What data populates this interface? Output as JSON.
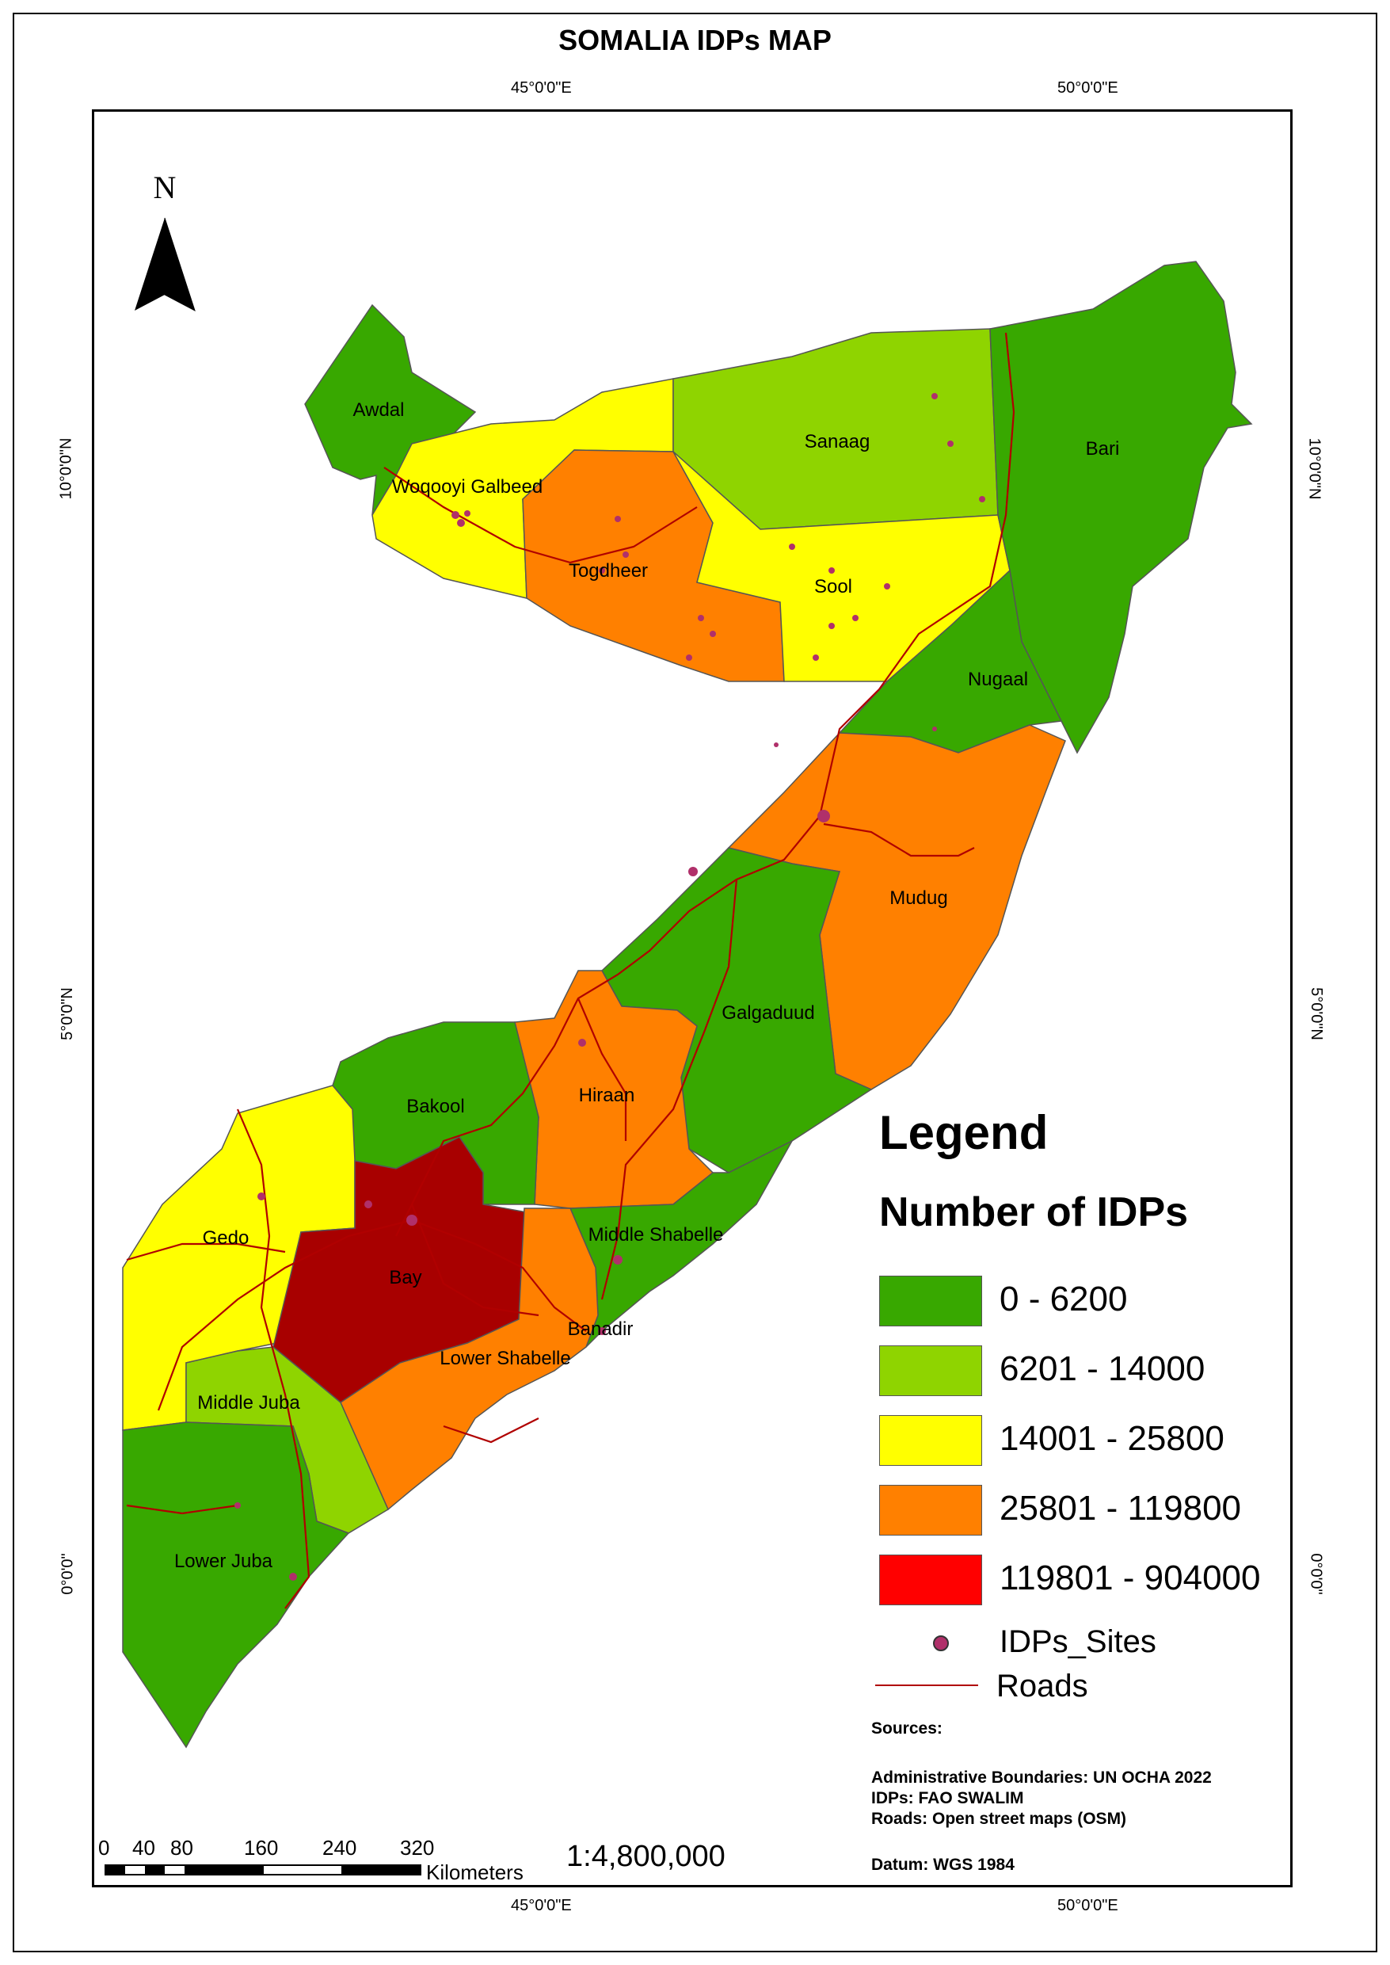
{
  "title": "SOMALIA IDPs MAP",
  "graticule": {
    "lon_top": [
      "45°0'0\"E",
      "50°0'0\"E"
    ],
    "lon_bottom": [
      "45°0'0\"E",
      "50°0'0\"E"
    ],
    "lat_left": [
      "10°0'0\"N",
      "5°0'0\"N",
      "0°0'0\""
    ],
    "lat_right": [
      "10°0'0\"N",
      "5°0'0\"N",
      "0°0'0\""
    ]
  },
  "north_arrow": {
    "label": "N"
  },
  "regions": [
    {
      "name": "Awdal",
      "category": "0 - 6200"
    },
    {
      "name": "Woqooyi Galbeed",
      "category": "14001 - 25800"
    },
    {
      "name": "Togdheer",
      "category": "25801 - 119800"
    },
    {
      "name": "Sanaag",
      "category": "6201 - 14000"
    },
    {
      "name": "Sool",
      "category": "14001 - 25800"
    },
    {
      "name": "Bari",
      "category": "0 - 6200"
    },
    {
      "name": "Nugaal",
      "category": "0 - 6200"
    },
    {
      "name": "Mudug",
      "category": "25801 - 119800"
    },
    {
      "name": "Galgaduud",
      "category": "0 - 6200"
    },
    {
      "name": "Hiraan",
      "category": "25801 - 119800"
    },
    {
      "name": "Bakool",
      "category": "0 - 6200"
    },
    {
      "name": "Gedo",
      "category": "14001 - 25800"
    },
    {
      "name": "Bay",
      "category": "119801 - 904000"
    },
    {
      "name": "Middle Shabelle",
      "category": "0 - 6200"
    },
    {
      "name": "Banadir",
      "category": "25801 - 119800"
    },
    {
      "name": "Lower Shabelle",
      "category": "25801 - 119800"
    },
    {
      "name": "Middle Juba",
      "category": "6201 - 14000"
    },
    {
      "name": "Lower Juba",
      "category": "0 - 6200"
    }
  ],
  "legend": {
    "title": "Legend",
    "subtitle": "Number of IDPs",
    "classes": [
      {
        "label": "0 - 6200",
        "color": "#38a800"
      },
      {
        "label": "6201 - 14000",
        "color": "#8fd400"
      },
      {
        "label": "14001 - 25800",
        "color": "#ffff00"
      },
      {
        "label": "25801 - 119800",
        "color": "#ff8000"
      },
      {
        "label": "119801 - 904000",
        "color": "#ff0000"
      }
    ],
    "sites_label": "IDPs_Sites",
    "roads_label": "Roads"
  },
  "colors": {
    "bay_fill": "#a80000",
    "road": "#b00000",
    "site": "#b0306a",
    "outline": "#555555"
  },
  "sources": {
    "heading": "Sources:",
    "lines": [
      "Administrative Boundaries: UN OCHA 2022",
      "IDPs: FAO SWALIM",
      "Roads: Open street maps (OSM)"
    ],
    "datum": "Datum: WGS 1984"
  },
  "scale": {
    "ticks": [
      "0",
      "40",
      "80",
      "160",
      "240",
      "320"
    ],
    "unit": "Kilometers",
    "ratio": "1:4,800,000"
  }
}
